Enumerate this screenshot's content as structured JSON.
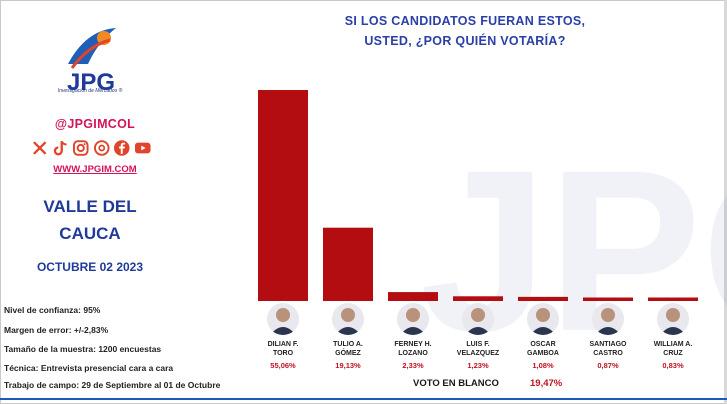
{
  "header": {
    "brand": "JPG",
    "tagline": "Investigación de Mercados ®",
    "handle": "@JPGIMCOL",
    "website": "WWW.JPGIM.COM",
    "social_icons": [
      "x-icon",
      "tiktok-icon",
      "instagram-icon",
      "threads-icon",
      "facebook-icon",
      "youtube-icon"
    ]
  },
  "region": {
    "line1": "VALLE DEL",
    "line2": "CAUCA"
  },
  "date": "OCTUBRE 02 2023",
  "methodology": {
    "confidence": "Nivel de confianza: 95%",
    "margin": "Margen de error: +/-2,83%",
    "sample": "Tamaño de la muestra: 1200 encuestas",
    "technique": "Técnica: Entrevista presencial cara a cara",
    "fieldwork": "Trabajo de campo: 29 de Septiembre al 01 de Octubre"
  },
  "blank_vote": {
    "label": "VOTO EN BLANCO",
    "value": "19,47%"
  },
  "colors": {
    "bar": "#b30d12",
    "title": "#2a3fa8",
    "accent": "#d4145a",
    "percent": "#c0111f"
  },
  "chart_data": {
    "type": "bar",
    "title": "SI LOS CANDIDATOS FUERAN ESTOS, USTED, ¿POR QUIÉN VOTARÍA?",
    "title_line1": "SI LOS CANDIDATOS FUERAN ESTOS,",
    "title_line2": "USTED, ¿POR QUIÉN VOTARÍA?",
    "categories": [
      [
        "DILIAN F.",
        "TORO"
      ],
      [
        "TULIO A.",
        "GÓMEZ"
      ],
      [
        "FERNEY H.",
        "LOZANO"
      ],
      [
        "LUIS F.",
        "VELAZQUEZ"
      ],
      [
        "OSCAR",
        "GAMBOA"
      ],
      [
        "SANTIAGO",
        "CASTRO"
      ],
      [
        "WILLIAM A.",
        "CRUZ"
      ]
    ],
    "values": [
      55.06,
      19.13,
      2.33,
      1.23,
      1.08,
      0.87,
      0.83
    ],
    "value_labels": [
      "55,06%",
      "19,13%",
      "2,33%",
      "1,23%",
      "1,08%",
      "0,87%",
      "0,83%"
    ],
    "ylim": [
      0,
      55.06
    ],
    "grid": false,
    "legend": "none"
  }
}
